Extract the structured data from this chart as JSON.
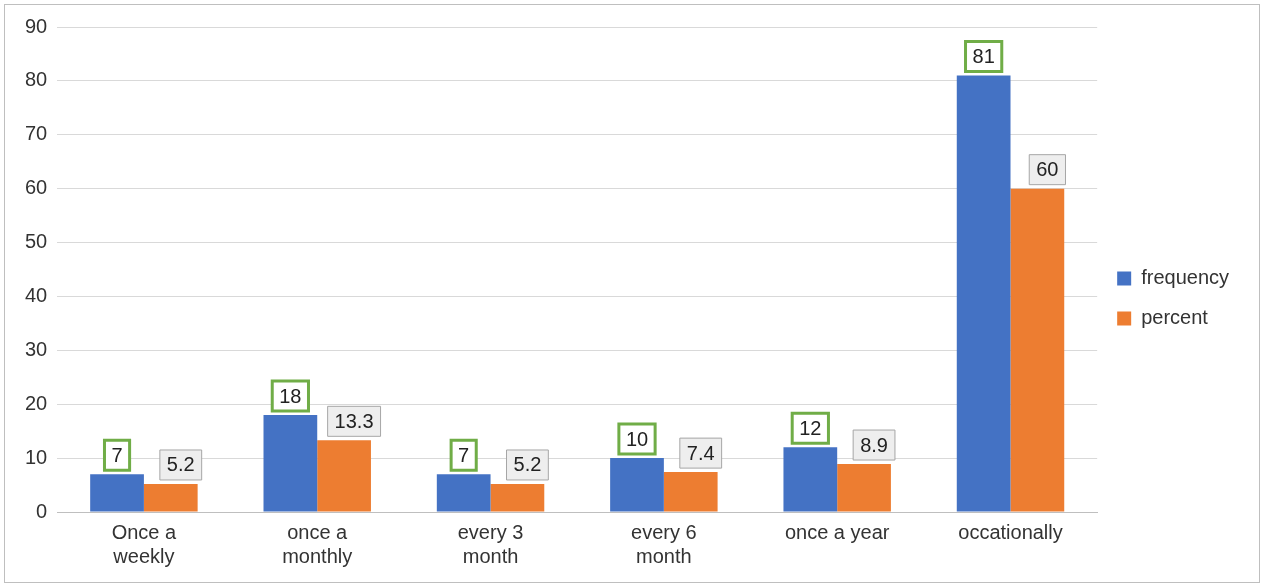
{
  "chart_data": {
    "type": "bar",
    "categories": [
      "Once a weekly",
      "once a monthly",
      "every 3 month",
      "every 6 month",
      "once a year",
      "occationally"
    ],
    "series": [
      {
        "name": "frequency",
        "color": "#4472c4",
        "values": [
          7,
          18,
          7,
          10,
          12,
          81
        ]
      },
      {
        "name": "percent",
        "color": "#ed7d31",
        "values": [
          5.2,
          13.3,
          5.2,
          7.4,
          8.9,
          60
        ]
      }
    ],
    "ylim": [
      0,
      90
    ],
    "yticks": [
      0,
      10,
      20,
      30,
      40,
      50,
      60,
      70,
      80,
      90
    ],
    "grid": "y",
    "legend": "right",
    "data_labels": true
  }
}
